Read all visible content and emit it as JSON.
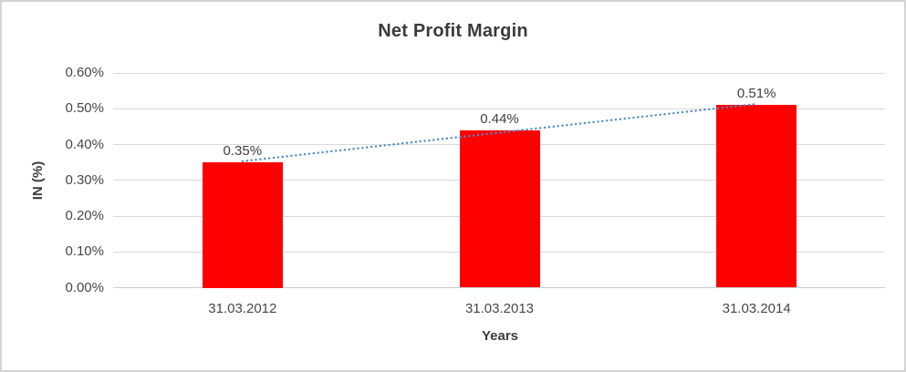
{
  "frame": {
    "background": "#ffffff",
    "border_color": "#d4d4d4"
  },
  "chart_data": {
    "type": "bar",
    "title": "Net Profit Margin",
    "xlabel": "Years",
    "ylabel": "IN (%)",
    "categories": [
      "31.03.2012",
      "31.03.2013",
      "31.03.2014"
    ],
    "values": [
      0.35,
      0.44,
      0.51
    ],
    "data_labels": [
      "0.35%",
      "0.44%",
      "0.51%"
    ],
    "y_ticks": [
      "0.00%",
      "0.10%",
      "0.20%",
      "0.30%",
      "0.40%",
      "0.50%",
      "0.60%"
    ],
    "y_tick_values": [
      0,
      0.1,
      0.2,
      0.3,
      0.4,
      0.5,
      0.6
    ],
    "ylim": [
      0,
      0.6
    ],
    "grid": true,
    "legend": "none",
    "bar_color": "#fe0000",
    "gridline_color": "#d9d9d9",
    "trendline": {
      "type": "linear",
      "style": "dotted",
      "color": "#4f8bc9"
    }
  }
}
